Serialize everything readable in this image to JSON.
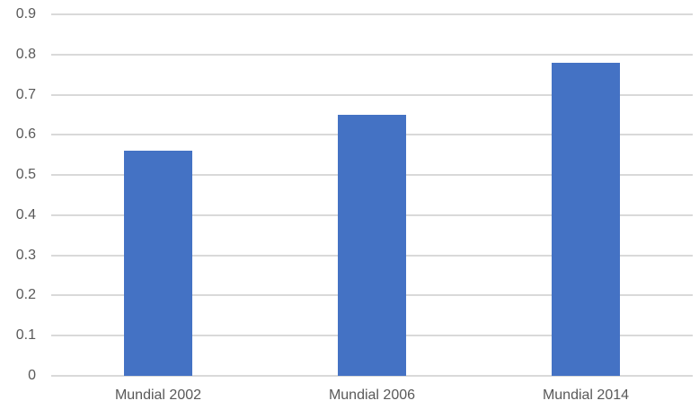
{
  "chart_data": {
    "type": "bar",
    "title": "",
    "xlabel": "",
    "ylabel": "",
    "categories": [
      "Mundial 2002",
      "Mundial 2006",
      "Mundial 2014"
    ],
    "values": [
      0.56,
      0.65,
      0.78
    ],
    "ylim": [
      0,
      0.9
    ],
    "ytick_step": 0.1,
    "ytick_labels": [
      "0",
      "0.1",
      "0.2",
      "0.3",
      "0.4",
      "0.5",
      "0.6",
      "0.7",
      "0.8",
      "0.9"
    ],
    "grid": true,
    "legend": false,
    "colors": {
      "bar": "#4472C4",
      "gridline": "#D9D9D9",
      "axis_line": "#D9D9D9",
      "tick_text": "#595959",
      "background": "#FFFFFF"
    }
  }
}
